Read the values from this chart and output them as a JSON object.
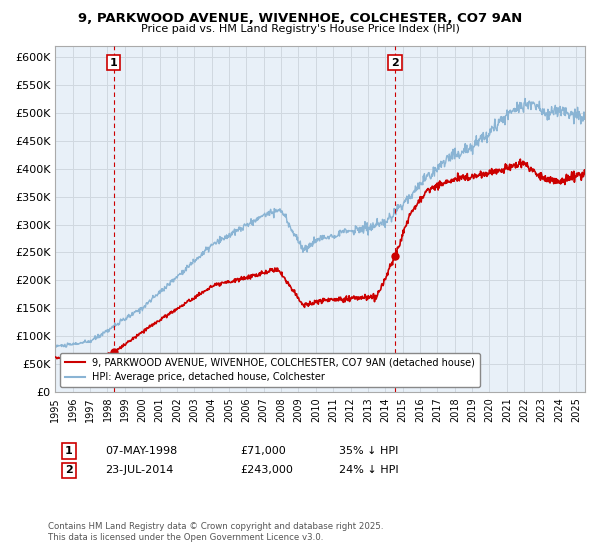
{
  "title1": "9, PARKWOOD AVENUE, WIVENHOE, COLCHESTER, CO7 9AN",
  "title2": "Price paid vs. HM Land Registry's House Price Index (HPI)",
  "legend1": "9, PARKWOOD AVENUE, WIVENHOE, COLCHESTER, CO7 9AN (detached house)",
  "legend2": "HPI: Average price, detached house, Colchester",
  "sale1_date": "07-MAY-1998",
  "sale1_price": "£71,000",
  "sale1_hpi": "35% ↓ HPI",
  "sale1_year": 1998.36,
  "sale1_value": 71000,
  "sale2_date": "23-JUL-2014",
  "sale2_price": "£243,000",
  "sale2_hpi": "24% ↓ HPI",
  "sale2_year": 2014.55,
  "sale2_value": 243000,
  "ylabel_ticks": [
    0,
    50000,
    100000,
    150000,
    200000,
    250000,
    300000,
    350000,
    400000,
    450000,
    500000,
    550000,
    600000
  ],
  "ylabel_labels": [
    "£0",
    "£50K",
    "£100K",
    "£150K",
    "£200K",
    "£250K",
    "£300K",
    "£350K",
    "£400K",
    "£450K",
    "£500K",
    "£550K",
    "£600K"
  ],
  "xmin": 1995,
  "xmax": 2025.5,
  "ymin": 0,
  "ymax": 620000,
  "hpi_color": "#8ab4d4",
  "price_color": "#cc0000",
  "vline_color": "#cc0000",
  "grid_color": "#d0d8e0",
  "bg_color": "#e8f0f8",
  "footnote": "Contains HM Land Registry data © Crown copyright and database right 2025.\nThis data is licensed under the Open Government Licence v3.0."
}
